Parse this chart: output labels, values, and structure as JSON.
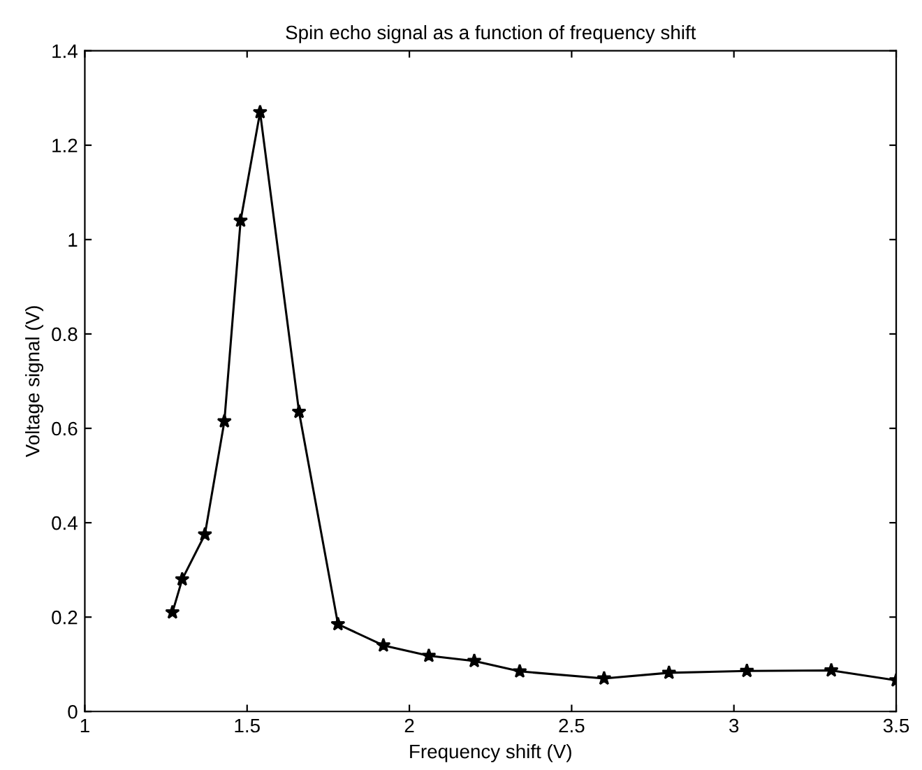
{
  "chart_data": {
    "type": "line",
    "title": "Spin echo signal as a function of frequency shift",
    "xlabel": "Frequency shift (V)",
    "ylabel": "Voltage signal (V)",
    "series": [
      {
        "color": "#000000",
        "x": [
          1.27,
          1.3,
          1.37,
          1.43,
          1.48,
          1.54,
          1.66,
          1.78,
          1.92,
          2.06,
          2.2,
          2.34,
          2.6,
          2.8,
          3.04,
          3.3,
          3.5
        ],
        "values": [
          0.21,
          0.28,
          0.375,
          0.615,
          1.04,
          1.27,
          0.635,
          0.185,
          0.14,
          0.118,
          0.107,
          0.085,
          0.07,
          0.082,
          0.086,
          0.087,
          0.066
        ]
      }
    ],
    "xlim": [
      1,
      3.5
    ],
    "xticks": [
      1,
      1.5,
      2,
      2.5,
      3,
      3.5
    ],
    "ylim": [
      0,
      1.4
    ],
    "yticks": [
      0,
      0.2,
      0.4,
      0.6,
      0.8,
      1,
      1.2,
      1.4
    ],
    "grid": false,
    "legend": false,
    "marker": "star",
    "line_style": "solid"
  }
}
